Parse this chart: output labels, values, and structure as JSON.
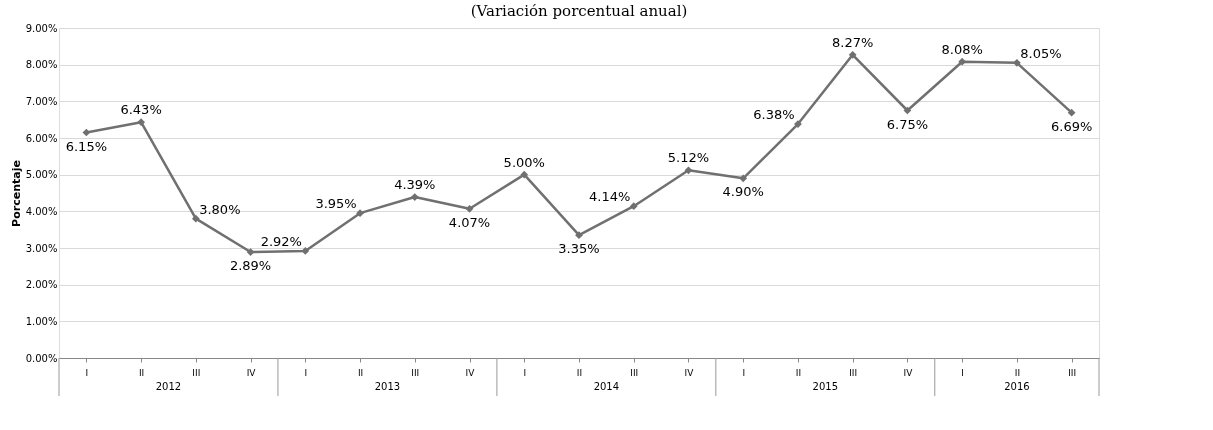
{
  "chart_data": {
    "type": "line",
    "title": "(Variación porcentual anual)",
    "ylabel": "Porcentaje",
    "categories": [
      "I",
      "II",
      "III",
      "IV",
      "I",
      "II",
      "III",
      "IV",
      "I",
      "II",
      "III",
      "IV",
      "I",
      "II",
      "III",
      "IV",
      "I",
      "II",
      "III"
    ],
    "series": [
      {
        "color": "#707070",
        "values": [
          6.15,
          6.43,
          3.8,
          2.89,
          2.92,
          3.95,
          4.39,
          4.07,
          5.0,
          3.35,
          4.14,
          5.12,
          4.9,
          6.38,
          8.27,
          6.75,
          8.08,
          8.05,
          6.69
        ],
        "value_labels": [
          "6.15%",
          "6.43%",
          "3.80%",
          "2.89%",
          "2.92%",
          "3.95%",
          "4.39%",
          "4.07%",
          "5.00%",
          "3.35%",
          "4.14%",
          "5.12%",
          "4.90%",
          "6.38%",
          "8.27%",
          "6.75%",
          "8.08%",
          "8.05%",
          "6.69%"
        ]
      }
    ],
    "ylim": [
      0,
      9
    ],
    "yticks": [
      {
        "value": 0,
        "label": "0.00%"
      },
      {
        "value": 1,
        "label": "1.00%"
      },
      {
        "value": 2,
        "label": "2.00%"
      },
      {
        "value": 3,
        "label": "3.00%"
      },
      {
        "value": 4,
        "label": "4.00%"
      },
      {
        "value": 5,
        "label": "5.00%"
      },
      {
        "value": 6,
        "label": "6.00%"
      },
      {
        "value": 7,
        "label": "7.00%"
      },
      {
        "value": 8,
        "label": "8.00%"
      },
      {
        "value": 9,
        "label": "9.00%"
      }
    ],
    "annotations": [
      "2012",
      "2013",
      "2014",
      "2015",
      "2016"
    ],
    "grid": "y",
    "marker": "diamond",
    "line_style": "solid"
  }
}
